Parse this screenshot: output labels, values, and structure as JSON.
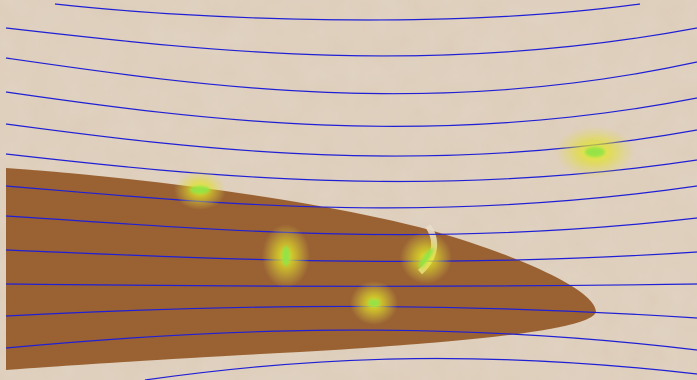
{
  "scene": {
    "colors": {
      "sand": "#d9c8b4",
      "sand_dark": "#c7b29a",
      "streamline": "#1f1fd6",
      "lobe": "#9a6233",
      "glow": "#e6ef2a",
      "glow_core": "#8fe34a"
    },
    "layers": [
      "sand-texture",
      "brown-lobe",
      "streamlines",
      "glow-spots"
    ],
    "streamline_count": 13,
    "glow_spot_count": 5
  }
}
